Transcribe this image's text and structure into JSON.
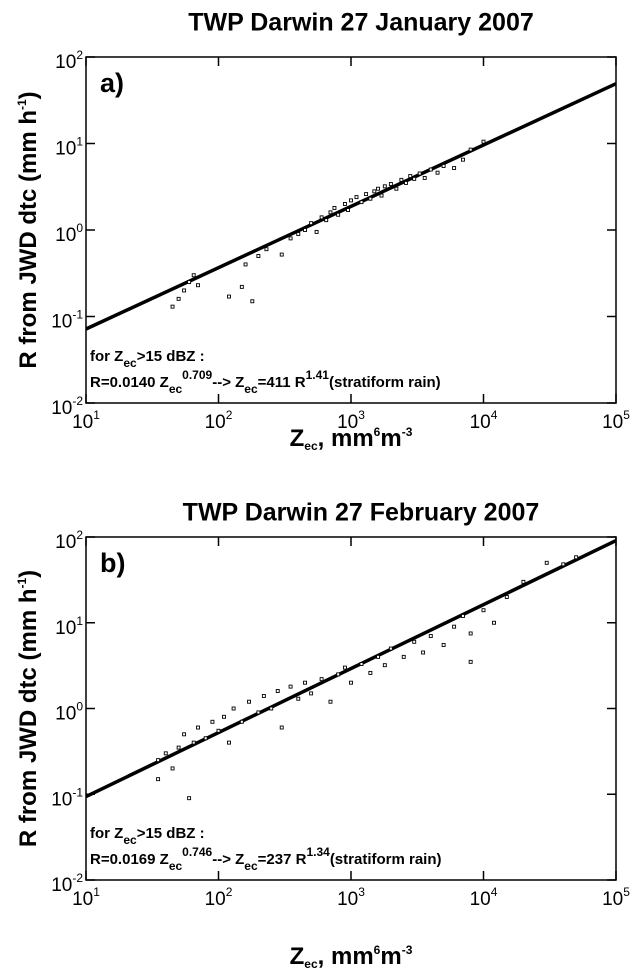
{
  "chart_data": [
    {
      "type": "scatter",
      "title": "TWP Darwin 27 January 2007",
      "panel_label": "a)",
      "x_label": [
        "Z",
        "ec",
        ", mm",
        "6",
        "m",
        "-3"
      ],
      "y_label": [
        "R from JWD dtc (mm h",
        "-1",
        ")"
      ],
      "annotation": [
        [
          "for Z",
          "ec",
          ">15 dBZ :"
        ],
        [
          "R=0.0140 Z",
          "ec",
          "0.709",
          "--> Z",
          "ec",
          "=411 R",
          "1.41",
          "(stratiform rain)"
        ]
      ],
      "log_x": true,
      "log_y": true,
      "xlim": [
        10,
        100000
      ],
      "ylim": [
        0.01,
        100
      ],
      "xticks": [
        {
          "value": 10,
          "label": [
            "10",
            "1"
          ]
        },
        {
          "value": 100,
          "label": [
            "10",
            "2"
          ]
        },
        {
          "value": 1000,
          "label": [
            "10",
            "3"
          ]
        },
        {
          "value": 10000,
          "label": [
            "10",
            "4"
          ]
        },
        {
          "value": 100000,
          "label": [
            "10",
            "5"
          ]
        }
      ],
      "yticks": [
        {
          "value": 0.01,
          "label": [
            "10",
            "-2"
          ]
        },
        {
          "value": 0.1,
          "label": [
            "10",
            "-1"
          ]
        },
        {
          "value": 1,
          "label": [
            "10",
            "0"
          ]
        },
        {
          "value": 10,
          "label": [
            "10",
            "1"
          ]
        },
        {
          "value": 100,
          "label": [
            "10",
            "2"
          ]
        }
      ],
      "series": [
        {
          "color": "#000000",
          "x": [
            45,
            50,
            55,
            60,
            65,
            70,
            120,
            150,
            180,
            160,
            200,
            230,
            300,
            350,
            400,
            450,
            500,
            550,
            600,
            650,
            700,
            750,
            800,
            900,
            950,
            1000,
            1100,
            1200,
            1300,
            1400,
            1500,
            1600,
            1700,
            1800,
            2000,
            2200,
            2400,
            2600,
            2800,
            3000,
            3300,
            3600,
            4000,
            4500,
            5000,
            6000,
            7000,
            8000,
            10000
          ],
          "y": [
            0.13,
            0.16,
            0.2,
            0.25,
            0.3,
            0.23,
            0.17,
            0.22,
            0.15,
            0.4,
            0.5,
            0.6,
            0.52,
            0.8,
            0.9,
            1.0,
            1.2,
            0.95,
            1.4,
            1.3,
            1.6,
            1.8,
            1.5,
            2.0,
            1.7,
            2.2,
            2.4,
            2.1,
            2.6,
            2.3,
            2.8,
            3.0,
            2.5,
            3.2,
            3.4,
            3.0,
            3.8,
            3.5,
            4.2,
            3.9,
            4.5,
            4.0,
            5.0,
            4.6,
            5.5,
            5.2,
            6.5,
            8.5,
            10.5
          ]
        }
      ],
      "fit_line": {
        "color": "#000000",
        "x": [
          10,
          100000
        ],
        "y": [
          0.0717,
          49.1
        ]
      }
    },
    {
      "type": "scatter",
      "title": "TWP Darwin 27 February 2007",
      "panel_label": "b)",
      "x_label": [
        "Z",
        "ec",
        ", mm",
        "6",
        "m",
        "-3"
      ],
      "y_label": [
        "R from JWD dtc (mm h",
        "-1",
        ")"
      ],
      "annotation": [
        [
          "for Z",
          "ec",
          ">15 dBZ :"
        ],
        [
          "R=0.0169 Z",
          "ec",
          "0.746",
          "--> Z",
          "ec",
          "=237 R",
          "1.34",
          "(stratiform rain)"
        ]
      ],
      "log_x": true,
      "log_y": true,
      "xlim": [
        10,
        100000
      ],
      "ylim": [
        0.01,
        100
      ],
      "xticks": [
        {
          "value": 10,
          "label": [
            "10",
            "1"
          ]
        },
        {
          "value": 100,
          "label": [
            "10",
            "2"
          ]
        },
        {
          "value": 1000,
          "label": [
            "10",
            "3"
          ]
        },
        {
          "value": 10000,
          "label": [
            "10",
            "4"
          ]
        },
        {
          "value": 100000,
          "label": [
            "10",
            "5"
          ]
        }
      ],
      "yticks": [
        {
          "value": 0.01,
          "label": [
            "10",
            "-2"
          ]
        },
        {
          "value": 0.1,
          "label": [
            "10",
            "-1"
          ]
        },
        {
          "value": 1,
          "label": [
            "10",
            "0"
          ]
        },
        {
          "value": 10,
          "label": [
            "10",
            "1"
          ]
        },
        {
          "value": 100,
          "label": [
            "10",
            "2"
          ]
        }
      ],
      "series": [
        {
          "color": "#000000",
          "x": [
            35,
            35,
            40,
            45,
            50,
            55,
            60,
            65,
            70,
            80,
            90,
            100,
            110,
            120,
            130,
            150,
            170,
            200,
            220,
            250,
            280,
            300,
            350,
            400,
            450,
            500,
            600,
            700,
            800,
            900,
            1000,
            1200,
            1400,
            1600,
            1800,
            2000,
            2500,
            3000,
            3500,
            4000,
            5000,
            6000,
            7000,
            8000,
            10000,
            12000,
            15000,
            20000,
            30000,
            40000,
            50000,
            8000
          ],
          "y": [
            0.15,
            0.25,
            0.3,
            0.2,
            0.35,
            0.5,
            0.09,
            0.4,
            0.6,
            0.45,
            0.7,
            0.55,
            0.8,
            0.4,
            1.0,
            0.7,
            1.2,
            0.9,
            1.4,
            1.0,
            1.6,
            0.6,
            1.8,
            1.3,
            2.0,
            1.5,
            2.2,
            1.2,
            2.5,
            3.0,
            2.0,
            3.3,
            2.6,
            4.0,
            3.2,
            5.0,
            4.0,
            6.0,
            4.5,
            7.0,
            5.5,
            9.0,
            12,
            7.5,
            14,
            10,
            20,
            30,
            50,
            48,
            58,
            3.5
          ]
        }
      ],
      "fit_line": {
        "color": "#000000",
        "x": [
          10,
          100000
        ],
        "y": [
          0.094,
          90.8
        ]
      }
    }
  ]
}
